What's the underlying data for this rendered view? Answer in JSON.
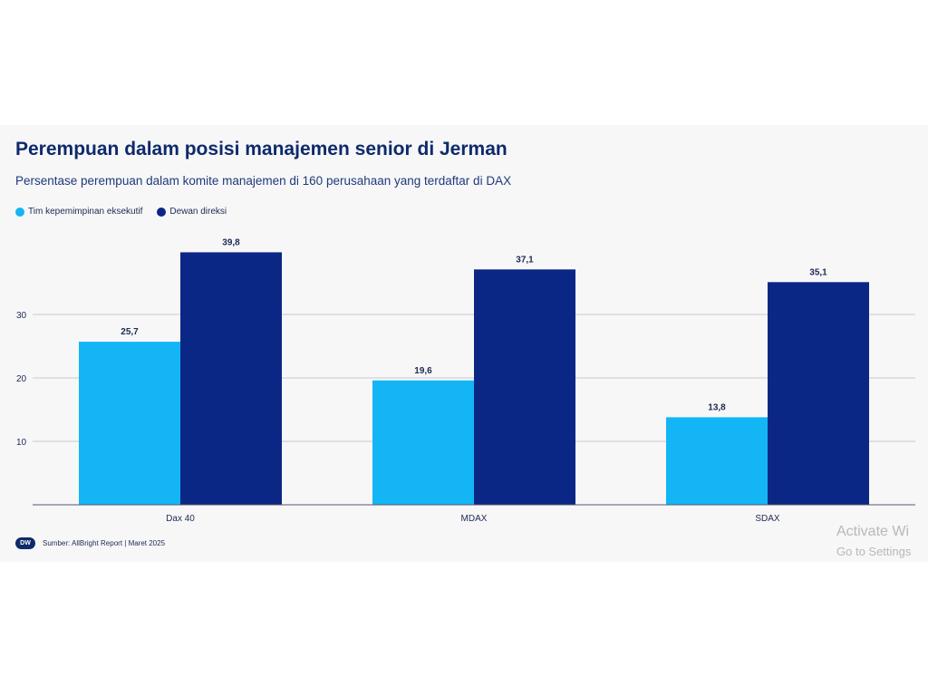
{
  "chart_data": {
    "type": "bar",
    "title": "Perempuan dalam posisi manajemen senior di Jerman",
    "subtitle": "Persentase perempuan dalam komite manajemen di 160 perusahaan yang terdaftar di DAX",
    "categories": [
      "Dax 40",
      "MDAX",
      "SDAX"
    ],
    "series": [
      {
        "name": "Tim kepemimpinan eksekutif",
        "values": [
          25.7,
          19.6,
          13.8
        ],
        "labels": [
          "25,7",
          "19,6",
          "13,8"
        ],
        "color": "#13b5f5"
      },
      {
        "name": "Dewan direksi",
        "values": [
          39.8,
          37.1,
          35.1
        ],
        "labels": [
          "39,8",
          "37,1",
          "35,1"
        ],
        "color": "#0b2785"
      }
    ],
    "yticks": [
      10,
      20,
      30
    ],
    "ylim": [
      0,
      40
    ],
    "grid": true,
    "legend": "top-left",
    "source": "Sumber: AllBright Report | Maret 2025"
  },
  "logo_text": "DW",
  "watermark": {
    "line1": "Activate Wi",
    "line2": "Go to Settings"
  }
}
